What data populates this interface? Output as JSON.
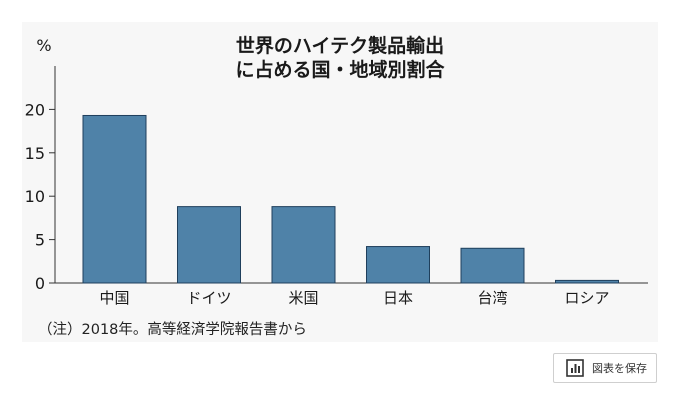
{
  "chart_data": {
    "type": "bar",
    "title": [
      "世界のハイテク製品輸出",
      "に占める国・地域別割合"
    ],
    "ylabel": "%",
    "ylim": [
      0,
      25
    ],
    "yticks": [
      "0",
      "5",
      "10",
      "15",
      "20"
    ],
    "categories": [
      "中国",
      "ドイツ",
      "米国",
      "日本",
      "台湾",
      "ロシア"
    ],
    "values": [
      19.3,
      8.8,
      8.8,
      4.2,
      4.0,
      0.3
    ],
    "bar_color": "#4f82a8",
    "grid": false
  },
  "footnote": "（注）2018年。高等経済学院報告書から",
  "save_button": {
    "label": "図表を保存",
    "icon": "bar-chart-icon"
  }
}
